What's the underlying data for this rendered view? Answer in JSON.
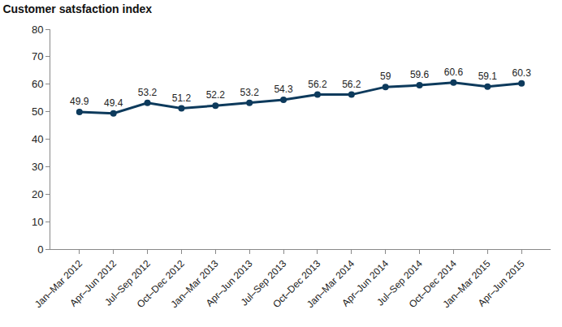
{
  "chart_data": {
    "type": "line",
    "title": "Customer satsfaction index",
    "categories": [
      "Jan–Mar 2012",
      "Apr–Jun 2012",
      "Jul–Sep 2012",
      "Oct–Dec 2012",
      "Jan–Mar 2013",
      "Apr–Jun 2013",
      "Jul–Sep 2013",
      "Oct–Dec 2013",
      "Jan–Mar 2014",
      "Apr–Jun 2014",
      "Jul–Sep 2014",
      "Oct–Dec 2014",
      "Jan–Mar 2015",
      "Apr–Jun 2015"
    ],
    "values": [
      49.9,
      49.4,
      53.2,
      51.2,
      52.2,
      53.2,
      54.3,
      56.2,
      56.2,
      59,
      59.6,
      60.6,
      59.1,
      60.3
    ],
    "color": "#0d3a5c",
    "marker": "circle",
    "ylim": [
      0,
      80
    ],
    "yticks": [
      0,
      10,
      20,
      30,
      40,
      50,
      60,
      70,
      80
    ],
    "grid": false,
    "data_labels": true
  }
}
